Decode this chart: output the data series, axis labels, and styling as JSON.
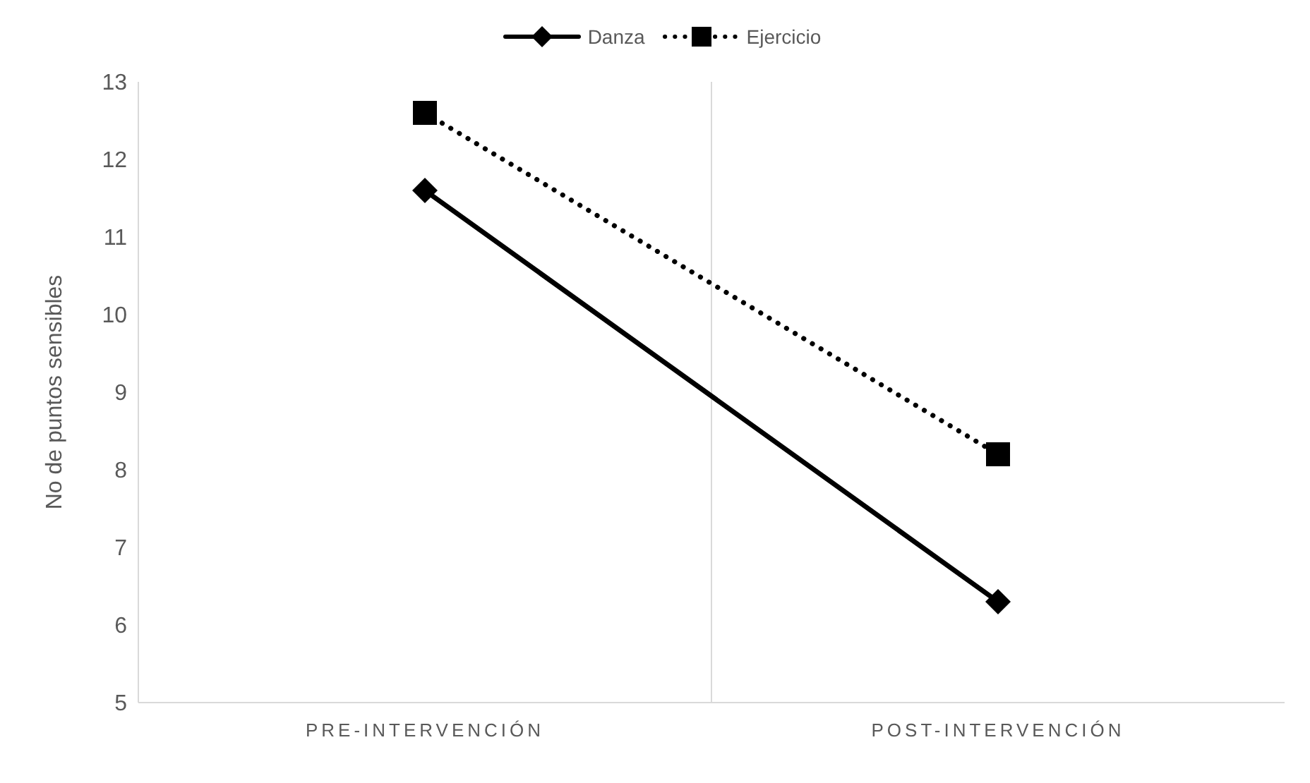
{
  "chart_data": {
    "type": "line",
    "ylabel": "No de puntos sensibles",
    "categories": [
      "PRE-INTERVENCIÓN",
      "POST-INTERVENCIÓN"
    ],
    "series": [
      {
        "name": "Danza",
        "color": "#000000",
        "values": [
          11.6,
          6.3
        ],
        "marker": "diamond",
        "line_style": "solid"
      },
      {
        "name": "Ejercicio",
        "color": "#000000",
        "values": [
          12.6,
          8.2
        ],
        "marker": "square",
        "line_style": "dotted"
      }
    ],
    "ylim": [
      5,
      13
    ],
    "yticks": [
      5,
      6,
      7,
      8,
      9,
      10,
      11,
      12,
      13
    ],
    "grid": "x",
    "legend": "top"
  }
}
